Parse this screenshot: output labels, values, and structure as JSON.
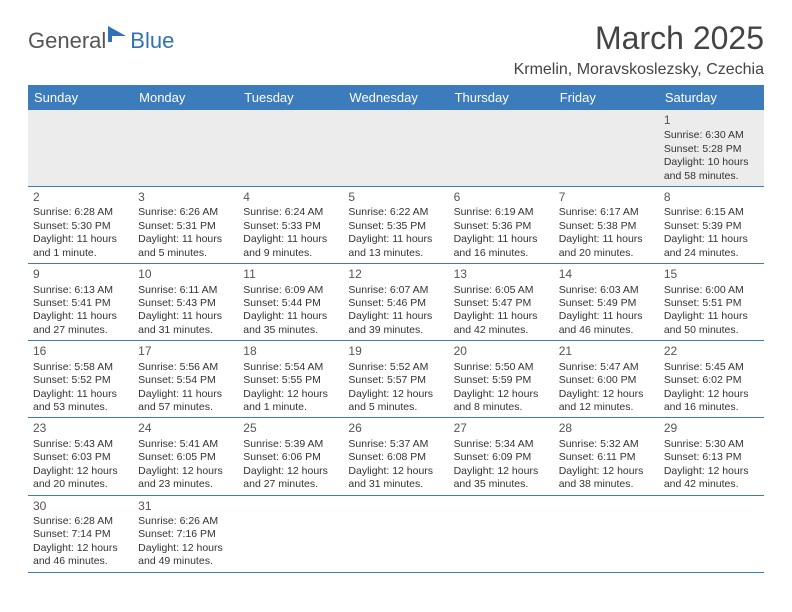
{
  "logo": {
    "text1": "General",
    "text2": "Blue"
  },
  "title": "March 2025",
  "location": "Krmelin, Moravskoslezsky, Czechia",
  "colors": {
    "header_bg": "#3c7cbd",
    "header_text": "#ffffff",
    "row_border": "#3c7cbd",
    "first_row_bg": "#ececec",
    "logo_gray": "#555555",
    "logo_blue": "#2f72b8",
    "body_text": "#333333"
  },
  "weekdays": [
    "Sunday",
    "Monday",
    "Tuesday",
    "Wednesday",
    "Thursday",
    "Friday",
    "Saturday"
  ],
  "weeks": [
    [
      null,
      null,
      null,
      null,
      null,
      null,
      {
        "d": "1",
        "sr": "6:30 AM",
        "ss": "5:28 PM",
        "dl": "10 hours and 58 minutes."
      }
    ],
    [
      {
        "d": "2",
        "sr": "6:28 AM",
        "ss": "5:30 PM",
        "dl": "11 hours and 1 minute."
      },
      {
        "d": "3",
        "sr": "6:26 AM",
        "ss": "5:31 PM",
        "dl": "11 hours and 5 minutes."
      },
      {
        "d": "4",
        "sr": "6:24 AM",
        "ss": "5:33 PM",
        "dl": "11 hours and 9 minutes."
      },
      {
        "d": "5",
        "sr": "6:22 AM",
        "ss": "5:35 PM",
        "dl": "11 hours and 13 minutes."
      },
      {
        "d": "6",
        "sr": "6:19 AM",
        "ss": "5:36 PM",
        "dl": "11 hours and 16 minutes."
      },
      {
        "d": "7",
        "sr": "6:17 AM",
        "ss": "5:38 PM",
        "dl": "11 hours and 20 minutes."
      },
      {
        "d": "8",
        "sr": "6:15 AM",
        "ss": "5:39 PM",
        "dl": "11 hours and 24 minutes."
      }
    ],
    [
      {
        "d": "9",
        "sr": "6:13 AM",
        "ss": "5:41 PM",
        "dl": "11 hours and 27 minutes."
      },
      {
        "d": "10",
        "sr": "6:11 AM",
        "ss": "5:43 PM",
        "dl": "11 hours and 31 minutes."
      },
      {
        "d": "11",
        "sr": "6:09 AM",
        "ss": "5:44 PM",
        "dl": "11 hours and 35 minutes."
      },
      {
        "d": "12",
        "sr": "6:07 AM",
        "ss": "5:46 PM",
        "dl": "11 hours and 39 minutes."
      },
      {
        "d": "13",
        "sr": "6:05 AM",
        "ss": "5:47 PM",
        "dl": "11 hours and 42 minutes."
      },
      {
        "d": "14",
        "sr": "6:03 AM",
        "ss": "5:49 PM",
        "dl": "11 hours and 46 minutes."
      },
      {
        "d": "15",
        "sr": "6:00 AM",
        "ss": "5:51 PM",
        "dl": "11 hours and 50 minutes."
      }
    ],
    [
      {
        "d": "16",
        "sr": "5:58 AM",
        "ss": "5:52 PM",
        "dl": "11 hours and 53 minutes."
      },
      {
        "d": "17",
        "sr": "5:56 AM",
        "ss": "5:54 PM",
        "dl": "11 hours and 57 minutes."
      },
      {
        "d": "18",
        "sr": "5:54 AM",
        "ss": "5:55 PM",
        "dl": "12 hours and 1 minute."
      },
      {
        "d": "19",
        "sr": "5:52 AM",
        "ss": "5:57 PM",
        "dl": "12 hours and 5 minutes."
      },
      {
        "d": "20",
        "sr": "5:50 AM",
        "ss": "5:59 PM",
        "dl": "12 hours and 8 minutes."
      },
      {
        "d": "21",
        "sr": "5:47 AM",
        "ss": "6:00 PM",
        "dl": "12 hours and 12 minutes."
      },
      {
        "d": "22",
        "sr": "5:45 AM",
        "ss": "6:02 PM",
        "dl": "12 hours and 16 minutes."
      }
    ],
    [
      {
        "d": "23",
        "sr": "5:43 AM",
        "ss": "6:03 PM",
        "dl": "12 hours and 20 minutes."
      },
      {
        "d": "24",
        "sr": "5:41 AM",
        "ss": "6:05 PM",
        "dl": "12 hours and 23 minutes."
      },
      {
        "d": "25",
        "sr": "5:39 AM",
        "ss": "6:06 PM",
        "dl": "12 hours and 27 minutes."
      },
      {
        "d": "26",
        "sr": "5:37 AM",
        "ss": "6:08 PM",
        "dl": "12 hours and 31 minutes."
      },
      {
        "d": "27",
        "sr": "5:34 AM",
        "ss": "6:09 PM",
        "dl": "12 hours and 35 minutes."
      },
      {
        "d": "28",
        "sr": "5:32 AM",
        "ss": "6:11 PM",
        "dl": "12 hours and 38 minutes."
      },
      {
        "d": "29",
        "sr": "5:30 AM",
        "ss": "6:13 PM",
        "dl": "12 hours and 42 minutes."
      }
    ],
    [
      {
        "d": "30",
        "sr": "6:28 AM",
        "ss": "7:14 PM",
        "dl": "12 hours and 46 minutes."
      },
      {
        "d": "31",
        "sr": "6:26 AM",
        "ss": "7:16 PM",
        "dl": "12 hours and 49 minutes."
      },
      null,
      null,
      null,
      null,
      null
    ]
  ],
  "labels": {
    "sunrise": "Sunrise: ",
    "sunset": "Sunset: ",
    "daylight": "Daylight: "
  }
}
